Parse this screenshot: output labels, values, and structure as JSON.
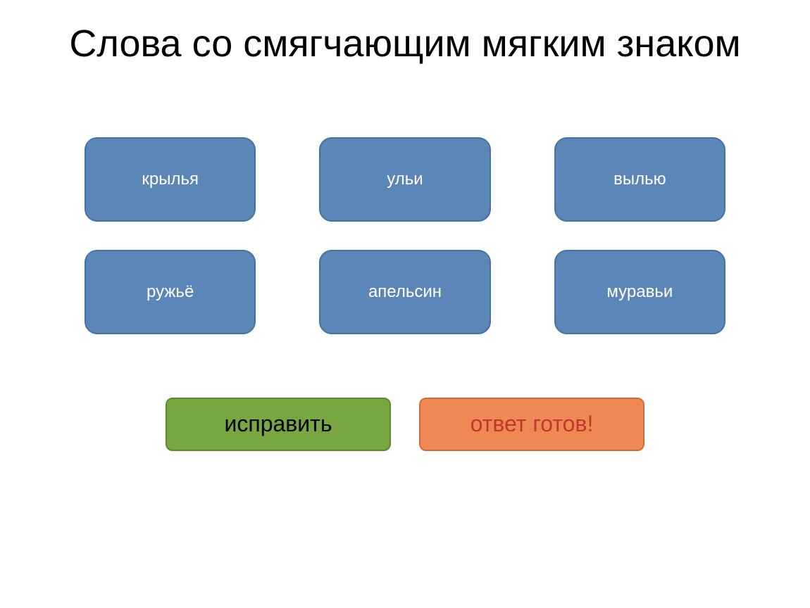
{
  "title": "Слова со смягчающим мягким знаком",
  "title_fontsize": 54,
  "title_color": "#000000",
  "background_color": "#ffffff",
  "cards": {
    "bg_color": "#5b86b8",
    "border_color": "#44739e",
    "text_color": "#ffffff",
    "fontsize": 24,
    "border_radius": 18,
    "items": [
      {
        "label": "крылья"
      },
      {
        "label": "ульи"
      },
      {
        "label": "вылью"
      },
      {
        "label": "ружьё"
      },
      {
        "label": "апельсин"
      },
      {
        "label": "муравьи"
      }
    ]
  },
  "actions": {
    "fix": {
      "label": "исправить",
      "bg_color": "#78a641",
      "border_color": "#5e8a2f",
      "text_color": "#000000"
    },
    "ready": {
      "label": "ответ готов!",
      "bg_color": "#f08855",
      "border_color": "#d66b3a",
      "text_color": "#c0392b"
    },
    "fontsize": 32,
    "border_radius": 10
  }
}
